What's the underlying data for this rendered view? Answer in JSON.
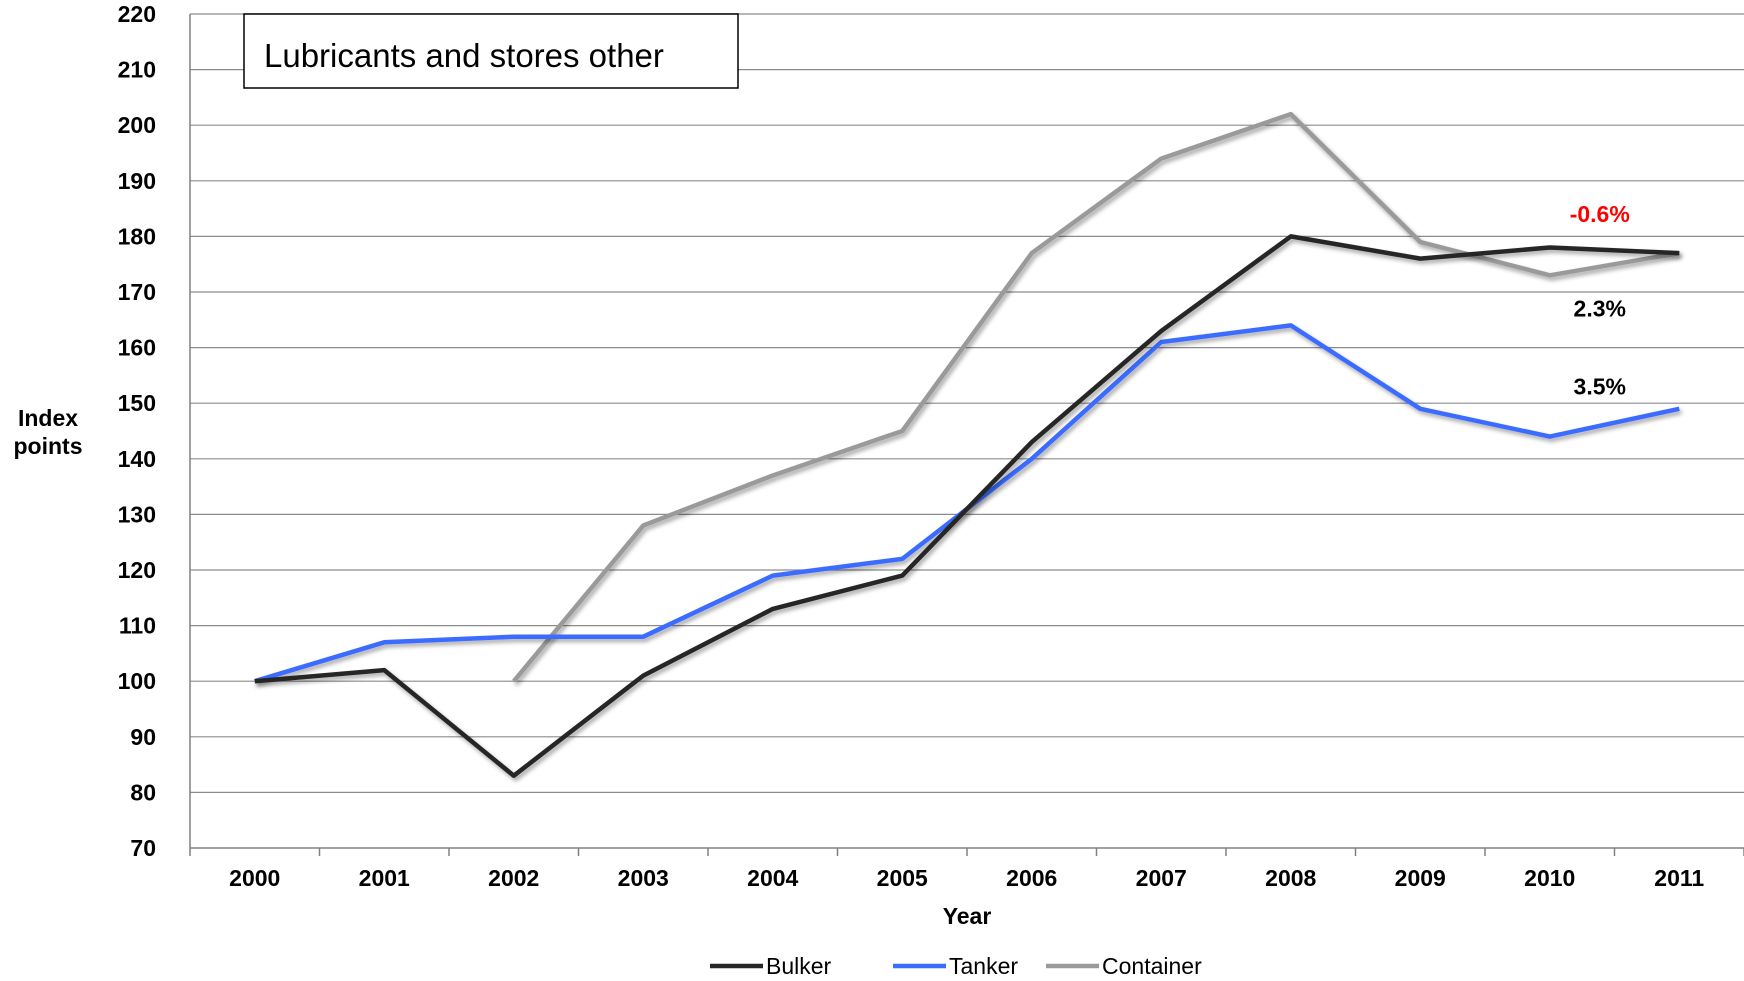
{
  "chart_data": {
    "type": "line",
    "title": "Lubricants and stores other",
    "xlabel": "Year",
    "ylabel_lines": [
      "Index",
      "points"
    ],
    "ylim": [
      70,
      220
    ],
    "ytick_step": 10,
    "grid": true,
    "legend_position": "bottom",
    "categories": [
      "2000",
      "2001",
      "2002",
      "2003",
      "2004",
      "2005",
      "2006",
      "2007",
      "2008",
      "2009",
      "2010",
      "2011"
    ],
    "series": [
      {
        "name": "Bulker",
        "color": "#262626",
        "values": [
          100,
          102,
          83,
          101,
          113,
          119,
          143,
          163,
          180,
          176,
          178,
          177
        ]
      },
      {
        "name": "Tanker",
        "color": "#3b6cff",
        "values": [
          100,
          107,
          108,
          108,
          119,
          122,
          140,
          161,
          164,
          149,
          144,
          149
        ]
      },
      {
        "name": "Container",
        "color": "#9a9a9a",
        "values": [
          null,
          null,
          100,
          128,
          137,
          145,
          177,
          194,
          202,
          179,
          173,
          177
        ]
      }
    ],
    "annotations": [
      {
        "text": "-0.6%",
        "color": "#ff0000",
        "x": "2010",
        "y": 184
      },
      {
        "text": "2.3%",
        "color": "#000000",
        "x": "2010",
        "y": 167
      },
      {
        "text": "3.5%",
        "color": "#000000",
        "x": "2010",
        "y": 153
      }
    ]
  }
}
